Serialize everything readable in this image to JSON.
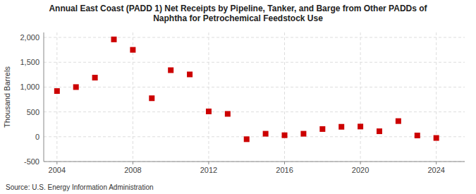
{
  "chart_data": {
    "type": "scatter",
    "title": "Annual East Coast (PADD 1) Net Receipts by Pipeline, Tanker, and Barge from Other PADDs of\nNaphtha for Petrochemical Feedstock Use",
    "y_label": "Thousand Barrels",
    "annotations": [
      "Source: U.S. Energy Information Administration"
    ],
    "x": [
      2004,
      2005,
      2006,
      2007,
      2008,
      2009,
      2010,
      2011,
      2012,
      2013,
      2014,
      2015,
      2016,
      2017,
      2018,
      2019,
      2020,
      2021,
      2022,
      2023,
      2024
    ],
    "values": [
      920,
      1000,
      1190,
      1960,
      1750,
      775,
      1340,
      1255,
      510,
      460,
      -50,
      60,
      30,
      60,
      155,
      200,
      205,
      110,
      315,
      25,
      -25
    ],
    "color": "#CC0000",
    "marker": "square",
    "xlim": [
      2003.3,
      2025.5
    ],
    "ylim": [
      -500,
      2100
    ],
    "xticks": [
      2004,
      2008,
      2012,
      2016,
      2020,
      2024
    ],
    "yticks": [
      -500,
      0,
      500,
      {
        "value": 1000,
        "label": "1,000"
      },
      {
        "value": 1500,
        "label": "1,500"
      },
      {
        "value": 2000,
        "label": "2,000"
      }
    ],
    "grid": true
  }
}
